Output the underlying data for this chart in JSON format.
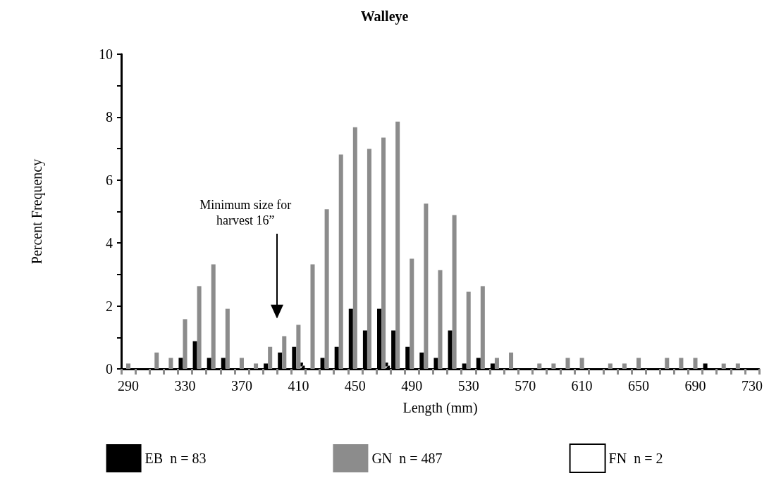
{
  "chart_data": {
    "type": "bar",
    "title": "Walleye",
    "xlabel": "Length (mm)",
    "ylabel": "Percent Frequency",
    "categories": [
      "290",
      null,
      null,
      null,
      "330",
      null,
      null,
      null,
      "370",
      null,
      null,
      null,
      "410",
      null,
      null,
      null,
      "450",
      null,
      null,
      null,
      "490",
      null,
      null,
      null,
      "530",
      null,
      null,
      null,
      "570",
      null,
      null,
      null,
      "610",
      null,
      null,
      null,
      "650",
      null,
      null,
      null,
      "690",
      null,
      null,
      null,
      "730"
    ],
    "series": [
      {
        "name": "EB  n = 83",
        "color": "#000000",
        "values": [
          0,
          0,
          0,
          0,
          0.35,
          0.88,
          0.35,
          0.35,
          0,
          0,
          0.17,
          0.52,
          0.7,
          0,
          0.35,
          0.7,
          1.91,
          1.22,
          1.91,
          1.22,
          0.7,
          0.52,
          0.35,
          1.22,
          0.17,
          0.35,
          0.17,
          0,
          0,
          0,
          0,
          0,
          0,
          0,
          0,
          0,
          0,
          0,
          0,
          0,
          0,
          0.17,
          0,
          0,
          0
        ]
      },
      {
        "name": "GN  n = 487",
        "color": "#8c8c8c",
        "values": [
          0.17,
          0,
          0.52,
          0.35,
          1.58,
          2.63,
          3.32,
          1.91,
          0.35,
          0.17,
          0.7,
          1.04,
          1.4,
          3.32,
          5.07,
          6.81,
          7.68,
          6.99,
          7.35,
          7.86,
          3.5,
          5.25,
          3.14,
          4.89,
          2.45,
          2.63,
          0.35,
          0.52,
          0,
          0.17,
          0.17,
          0.35,
          0.35,
          0,
          0.17,
          0.17,
          0.35,
          0,
          0.35,
          0.35,
          0.35,
          0,
          0.17,
          0.17,
          0
        ]
      },
      {
        "name": "FN  n = 2",
        "color": "#ffffff",
        "values": [
          0,
          0,
          0,
          0,
          0,
          0,
          0,
          0,
          0,
          0,
          0,
          0,
          0.2,
          0,
          0,
          0,
          0,
          0,
          0.2,
          0,
          0,
          0,
          0,
          0,
          0,
          0,
          0,
          0,
          0,
          0,
          0,
          0,
          0,
          0,
          0,
          0,
          0,
          0,
          0,
          0,
          0,
          0,
          0,
          0,
          0
        ]
      }
    ],
    "ylim": [
      0,
      10
    ],
    "yticks": [
      0,
      {
        "value": 1,
        "label": null
      },
      2,
      {
        "value": 3,
        "label": null
      },
      4,
      {
        "value": 5,
        "label": null
      },
      6,
      {
        "value": 7,
        "label": null
      },
      8,
      {
        "value": 9,
        "label": null
      },
      10
    ],
    "grid": false,
    "legend": "bottom",
    "annotations": [
      "Minimum size for harvest 16”"
    ]
  }
}
